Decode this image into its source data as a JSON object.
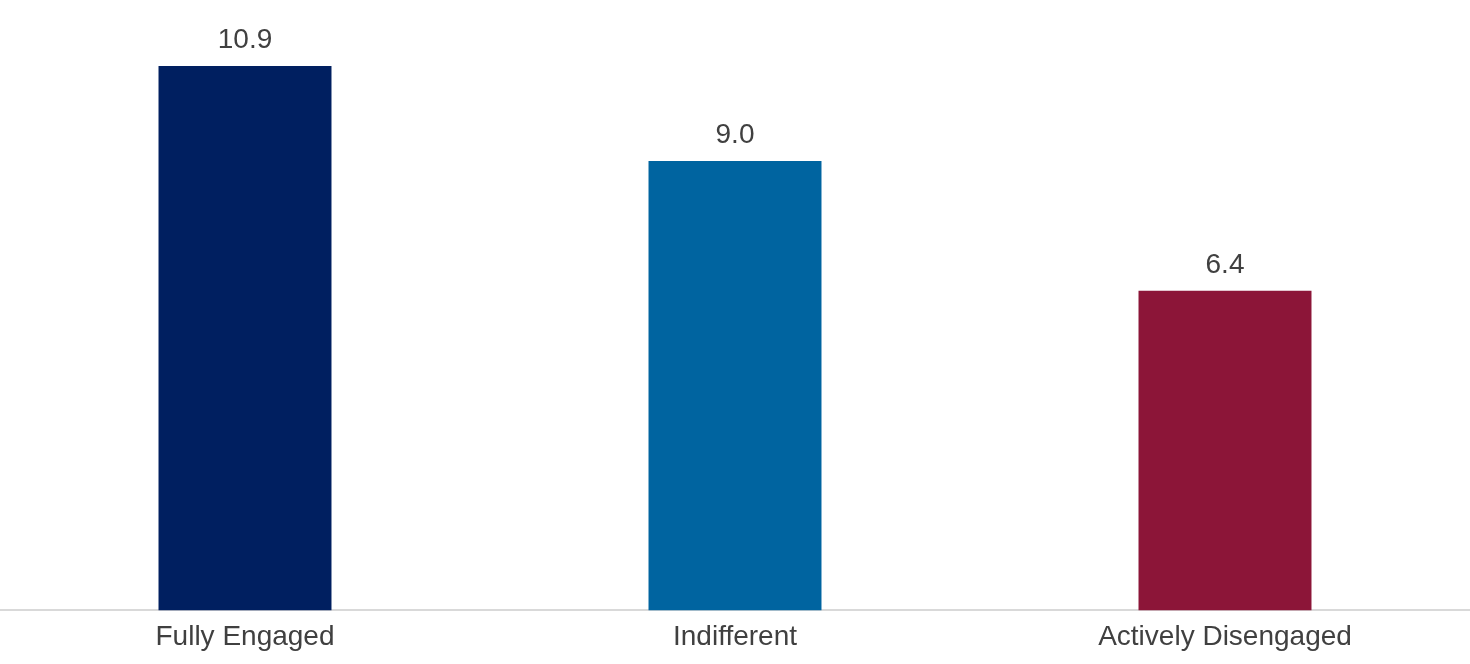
{
  "chart_data": {
    "type": "bar",
    "categories": [
      "Fully Engaged",
      "Indifferent",
      "Actively Disengaged"
    ],
    "values": [
      10.9,
      9.0,
      6.4
    ],
    "colors": [
      "#001f60",
      "#0064a0",
      "#8c1538"
    ],
    "value_labels": [
      "10.9",
      "9.0",
      "6.4"
    ],
    "grid": false,
    "legend": false
  }
}
